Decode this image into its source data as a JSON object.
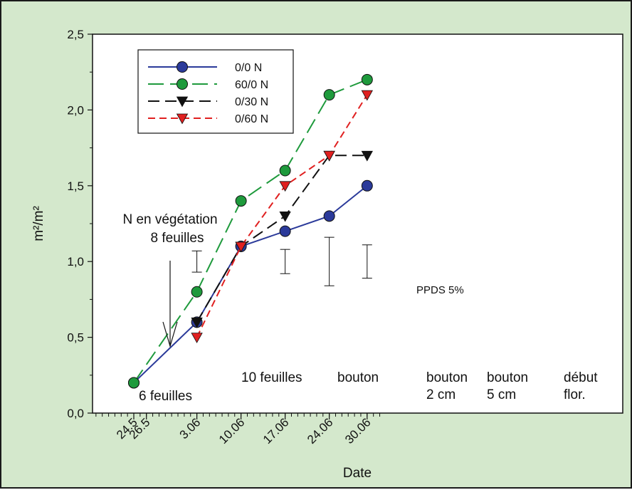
{
  "chart_data": {
    "type": "line",
    "xlabel": "Date",
    "ylabel": "m²/m²",
    "ylim": [
      0,
      2.5
    ],
    "y_ticks": [
      "0,0",
      "0,5",
      "1,0",
      "1,5",
      "2,0",
      "2,5"
    ],
    "x_dates": [
      "24.5",
      "26.5",
      "3.06",
      "10.06",
      "17.06",
      "24.06",
      "30.06"
    ],
    "legend_position": "top-left",
    "series": [
      {
        "name": "0/0 N",
        "color": "#2b3a9a",
        "dash": "solid",
        "marker": "circle",
        "points": [
          [
            "24.5",
            0.2
          ],
          [
            "3.06",
            0.6
          ],
          [
            "10.06",
            1.1
          ],
          [
            "17.06",
            1.2
          ],
          [
            "24.06",
            1.3
          ],
          [
            "30.06",
            1.5
          ]
        ]
      },
      {
        "name": "60/0 N",
        "color": "#1e9a3c",
        "dash": "long",
        "marker": "circle",
        "points": [
          [
            "24.5",
            0.2
          ],
          [
            "3.06",
            0.8
          ],
          [
            "10.06",
            1.4
          ],
          [
            "17.06",
            1.6
          ],
          [
            "24.06",
            2.1
          ],
          [
            "30.06",
            2.2
          ]
        ]
      },
      {
        "name": "0/30 N",
        "color": "#111111",
        "dash": "medium",
        "marker": "triangle-down",
        "points": [
          [
            "3.06",
            0.6
          ],
          [
            "10.06",
            1.1
          ],
          [
            "17.06",
            1.3
          ],
          [
            "24.06",
            1.7
          ],
          [
            "30.06",
            1.7
          ]
        ]
      },
      {
        "name": "0/60 N",
        "color": "#e02020",
        "dash": "short",
        "marker": "triangle-down",
        "points": [
          [
            "3.06",
            0.5
          ],
          [
            "10.06",
            1.1
          ],
          [
            "17.06",
            1.5
          ],
          [
            "24.06",
            1.7
          ],
          [
            "30.06",
            2.1
          ]
        ]
      }
    ],
    "error_bars": [
      {
        "x": "3.06",
        "low": 0.93,
        "high": 1.07
      },
      {
        "x": "17.06",
        "low": 0.92,
        "high": 1.08
      },
      {
        "x": "24.06",
        "low": 0.84,
        "high": 1.16
      },
      {
        "x": "30.06",
        "low": 0.89,
        "high": 1.11
      }
    ],
    "error_bar_label": "PPDS 5%",
    "annotations": {
      "n_application": [
        "N en végétation",
        "8 feuilles"
      ],
      "stages": [
        {
          "lines": [
            "6 feuilles"
          ]
        },
        {
          "lines": [
            "10 feuilles"
          ]
        },
        {
          "lines": [
            "bouton"
          ]
        },
        {
          "lines": [
            "bouton",
            "2 cm"
          ]
        },
        {
          "lines": [
            "bouton",
            "5 cm"
          ]
        },
        {
          "lines": [
            "début",
            "flor."
          ]
        }
      ]
    }
  }
}
